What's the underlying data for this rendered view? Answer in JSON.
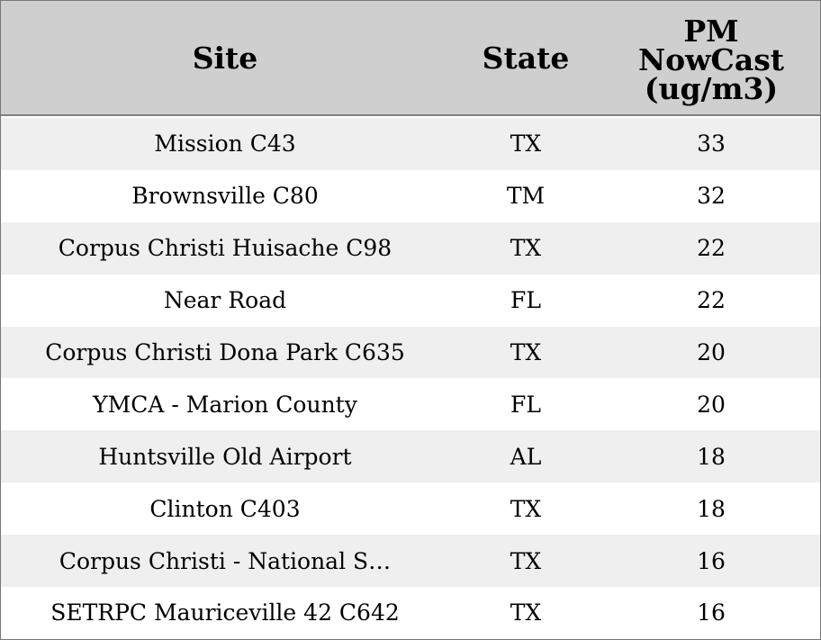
{
  "chart_data": {
    "type": "table",
    "columns": [
      "Site",
      "State",
      "PM\nNowCast\n(ug/m3)"
    ],
    "rows": [
      {
        "site": "Mission C43",
        "state": "TX",
        "pm": "33"
      },
      {
        "site": "Brownsville C80",
        "state": "TM",
        "pm": "32"
      },
      {
        "site": "Corpus Christi Huisache C98",
        "state": "TX",
        "pm": "22"
      },
      {
        "site": "Near Road",
        "state": "FL",
        "pm": "22"
      },
      {
        "site": "Corpus Christi Dona Park C635",
        "state": "TX",
        "pm": "20"
      },
      {
        "site": "YMCA - Marion County",
        "state": "FL",
        "pm": "20"
      },
      {
        "site": "Huntsville Old Airport",
        "state": "AL",
        "pm": "18"
      },
      {
        "site": "Clinton C403",
        "state": "TX",
        "pm": "18"
      },
      {
        "site": "Corpus Christi - National S…",
        "state": "TX",
        "pm": "16"
      },
      {
        "site": "SETRPC Mauriceville 42 C642",
        "state": "TX",
        "pm": "16"
      }
    ]
  }
}
